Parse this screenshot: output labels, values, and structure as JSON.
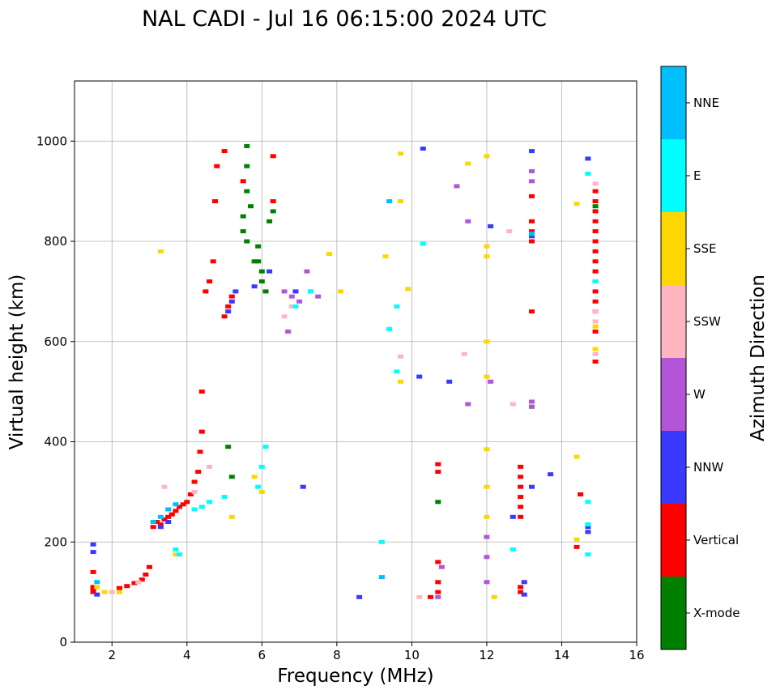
{
  "chart_data": {
    "type": "scatter",
    "title": "NAL CADI - Jul 16 06:15:00 2024 UTC",
    "xlabel": "Frequency (MHz)",
    "ylabel": "Virtual height (km)",
    "xlim": [
      1,
      16
    ],
    "ylim": [
      0,
      1120
    ],
    "xticks": [
      "2",
      "4",
      "6",
      "8",
      "10",
      "12",
      "14",
      "16"
    ],
    "yticks": [
      "0",
      "200",
      "400",
      "600",
      "800",
      "1000"
    ],
    "grid": true,
    "colorbar": {
      "label": "Azimuth Direction",
      "categories": [
        {
          "name": "X-mode",
          "color": "#008000"
        },
        {
          "name": "Vertical",
          "color": "#ff0000"
        },
        {
          "name": "NNW",
          "color": "#3a3aff"
        },
        {
          "name": "W",
          "color": "#b455d8"
        },
        {
          "name": "SSW",
          "color": "#ffb6c1"
        },
        {
          "name": "SSE",
          "color": "#ffd700"
        },
        {
          "name": "E",
          "color": "#00ffff"
        },
        {
          "name": "NNE",
          "color": "#00bfff"
        }
      ]
    },
    "series": [
      {
        "name": "Vertical",
        "points": [
          [
            1.5,
            110
          ],
          [
            1.5,
            105
          ],
          [
            1.5,
            100
          ],
          [
            1.5,
            140
          ],
          [
            2.2,
            108
          ],
          [
            2.4,
            112
          ],
          [
            2.6,
            118
          ],
          [
            2.8,
            125
          ],
          [
            2.9,
            135
          ],
          [
            3.0,
            150
          ],
          [
            3.1,
            230
          ],
          [
            3.2,
            240
          ],
          [
            3.3,
            235
          ],
          [
            3.4,
            245
          ],
          [
            3.5,
            250
          ],
          [
            3.6,
            255
          ],
          [
            3.7,
            262
          ],
          [
            3.8,
            270
          ],
          [
            3.9,
            275
          ],
          [
            4.0,
            280
          ],
          [
            4.1,
            295
          ],
          [
            4.2,
            320
          ],
          [
            4.3,
            340
          ],
          [
            4.35,
            380
          ],
          [
            4.4,
            420
          ],
          [
            4.4,
            500
          ],
          [
            4.5,
            700
          ],
          [
            4.6,
            720
          ],
          [
            4.7,
            760
          ],
          [
            4.75,
            880
          ],
          [
            4.8,
            950
          ],
          [
            5.0,
            650
          ],
          [
            5.1,
            670
          ],
          [
            5.2,
            690
          ],
          [
            5.0,
            980
          ],
          [
            5.5,
            920
          ],
          [
            6.3,
            970
          ],
          [
            6.3,
            880
          ],
          [
            10.5,
            90
          ],
          [
            10.7,
            100
          ],
          [
            10.7,
            120
          ],
          [
            10.7,
            160
          ],
          [
            10.7,
            340
          ],
          [
            10.7,
            355
          ],
          [
            12.9,
            100
          ],
          [
            12.9,
            110
          ],
          [
            12.9,
            250
          ],
          [
            12.9,
            270
          ],
          [
            12.9,
            290
          ],
          [
            12.9,
            310
          ],
          [
            12.9,
            330
          ],
          [
            12.9,
            350
          ],
          [
            13.2,
            660
          ],
          [
            13.2,
            800
          ],
          [
            13.2,
            820
          ],
          [
            13.2,
            840
          ],
          [
            13.2,
            890
          ],
          [
            14.5,
            295
          ],
          [
            14.4,
            190
          ],
          [
            14.9,
            560
          ],
          [
            14.9,
            620
          ],
          [
            14.9,
            660
          ],
          [
            14.9,
            680
          ],
          [
            14.9,
            700
          ],
          [
            14.9,
            720
          ],
          [
            14.9,
            740
          ],
          [
            14.9,
            760
          ],
          [
            14.9,
            780
          ],
          [
            14.9,
            800
          ],
          [
            14.9,
            820
          ],
          [
            14.9,
            840
          ],
          [
            14.9,
            860
          ],
          [
            14.9,
            880
          ],
          [
            14.9,
            900
          ]
        ]
      },
      {
        "name": "X-mode",
        "points": [
          [
            5.1,
            390
          ],
          [
            5.2,
            330
          ],
          [
            5.6,
            990
          ],
          [
            5.6,
            950
          ],
          [
            5.6,
            900
          ],
          [
            5.7,
            870
          ],
          [
            5.5,
            850
          ],
          [
            5.5,
            820
          ],
          [
            5.6,
            800
          ],
          [
            5.9,
            790
          ],
          [
            5.9,
            760
          ],
          [
            6.0,
            740
          ],
          [
            6.0,
            720
          ],
          [
            6.1,
            700
          ],
          [
            5.8,
            760
          ],
          [
            6.2,
            840
          ],
          [
            6.3,
            860
          ],
          [
            10.7,
            280
          ],
          [
            13.2,
            470
          ],
          [
            14.9,
            870
          ]
        ]
      },
      {
        "name": "NNW",
        "points": [
          [
            1.5,
            195
          ],
          [
            1.5,
            180
          ],
          [
            1.6,
            95
          ],
          [
            3.3,
            230
          ],
          [
            3.5,
            240
          ],
          [
            5.1,
            660
          ],
          [
            5.2,
            680
          ],
          [
            5.3,
            700
          ],
          [
            5.8,
            710
          ],
          [
            6.2,
            740
          ],
          [
            6.9,
            700
          ],
          [
            7.1,
            310
          ],
          [
            8.6,
            90
          ],
          [
            10.2,
            530
          ],
          [
            10.3,
            985
          ],
          [
            11.0,
            520
          ],
          [
            12.1,
            830
          ],
          [
            12.7,
            250
          ],
          [
            13.0,
            120
          ],
          [
            13.0,
            95
          ],
          [
            13.2,
            310
          ],
          [
            13.2,
            980
          ],
          [
            13.2,
            810
          ],
          [
            13.7,
            335
          ],
          [
            14.7,
            220
          ],
          [
            14.7,
            230
          ],
          [
            14.7,
            965
          ]
        ]
      },
      {
        "name": "W",
        "points": [
          [
            6.6,
            700
          ],
          [
            6.7,
            620
          ],
          [
            6.8,
            690
          ],
          [
            7.0,
            680
          ],
          [
            7.2,
            740
          ],
          [
            7.3,
            700
          ],
          [
            7.5,
            690
          ],
          [
            10.7,
            90
          ],
          [
            10.8,
            150
          ],
          [
            11.2,
            910
          ],
          [
            11.5,
            475
          ],
          [
            11.5,
            840
          ],
          [
            12.0,
            120
          ],
          [
            12.0,
            170
          ],
          [
            12.0,
            210
          ],
          [
            12.1,
            520
          ],
          [
            13.2,
            480
          ],
          [
            13.2,
            470
          ],
          [
            13.2,
            940
          ],
          [
            13.2,
            920
          ]
        ]
      },
      {
        "name": "SSW",
        "points": [
          [
            2.0,
            100
          ],
          [
            2.7,
            120
          ],
          [
            3.4,
            310
          ],
          [
            4.2,
            300
          ],
          [
            4.6,
            350
          ],
          [
            6.6,
            650
          ],
          [
            6.8,
            670
          ],
          [
            9.7,
            570
          ],
          [
            10.2,
            90
          ],
          [
            11.4,
            575
          ],
          [
            12.7,
            475
          ],
          [
            12.6,
            820
          ],
          [
            14.9,
            575
          ],
          [
            14.9,
            640
          ],
          [
            14.9,
            660
          ],
          [
            14.9,
            915
          ]
        ]
      },
      {
        "name": "SSE",
        "points": [
          [
            1.6,
            110
          ],
          [
            1.8,
            100
          ],
          [
            2.2,
            100
          ],
          [
            3.3,
            780
          ],
          [
            3.7,
            175
          ],
          [
            5.2,
            250
          ],
          [
            5.8,
            330
          ],
          [
            6.0,
            300
          ],
          [
            7.8,
            775
          ],
          [
            8.1,
            700
          ],
          [
            9.3,
            770
          ],
          [
            9.7,
            975
          ],
          [
            9.7,
            880
          ],
          [
            9.7,
            520
          ],
          [
            9.9,
            705
          ],
          [
            11.5,
            955
          ],
          [
            12.0,
            970
          ],
          [
            12.0,
            790
          ],
          [
            12.0,
            770
          ],
          [
            12.0,
            600
          ],
          [
            12.0,
            530
          ],
          [
            12.0,
            385
          ],
          [
            12.0,
            310
          ],
          [
            12.0,
            250
          ],
          [
            12.2,
            90
          ],
          [
            14.4,
            875
          ],
          [
            14.4,
            370
          ],
          [
            14.4,
            205
          ],
          [
            14.9,
            585
          ],
          [
            14.9,
            630
          ]
        ]
      },
      {
        "name": "E",
        "points": [
          [
            3.7,
            185
          ],
          [
            3.8,
            175
          ],
          [
            4.2,
            265
          ],
          [
            4.4,
            270
          ],
          [
            4.6,
            280
          ],
          [
            5.0,
            290
          ],
          [
            5.9,
            310
          ],
          [
            6.0,
            350
          ],
          [
            6.1,
            390
          ],
          [
            6.9,
            670
          ],
          [
            7.3,
            700
          ],
          [
            9.2,
            200
          ],
          [
            9.4,
            625
          ],
          [
            9.6,
            670
          ],
          [
            9.6,
            540
          ],
          [
            10.3,
            795
          ],
          [
            12.7,
            185
          ],
          [
            14.7,
            175
          ],
          [
            14.7,
            280
          ],
          [
            14.7,
            235
          ],
          [
            14.7,
            935
          ],
          [
            14.9,
            720
          ]
        ]
      },
      {
        "name": "NNE",
        "points": [
          [
            1.6,
            120
          ],
          [
            3.1,
            240
          ],
          [
            3.3,
            250
          ],
          [
            3.5,
            265
          ],
          [
            3.7,
            275
          ],
          [
            9.2,
            130
          ],
          [
            9.4,
            880
          ],
          [
            13.2,
            815
          ]
        ]
      }
    ]
  }
}
